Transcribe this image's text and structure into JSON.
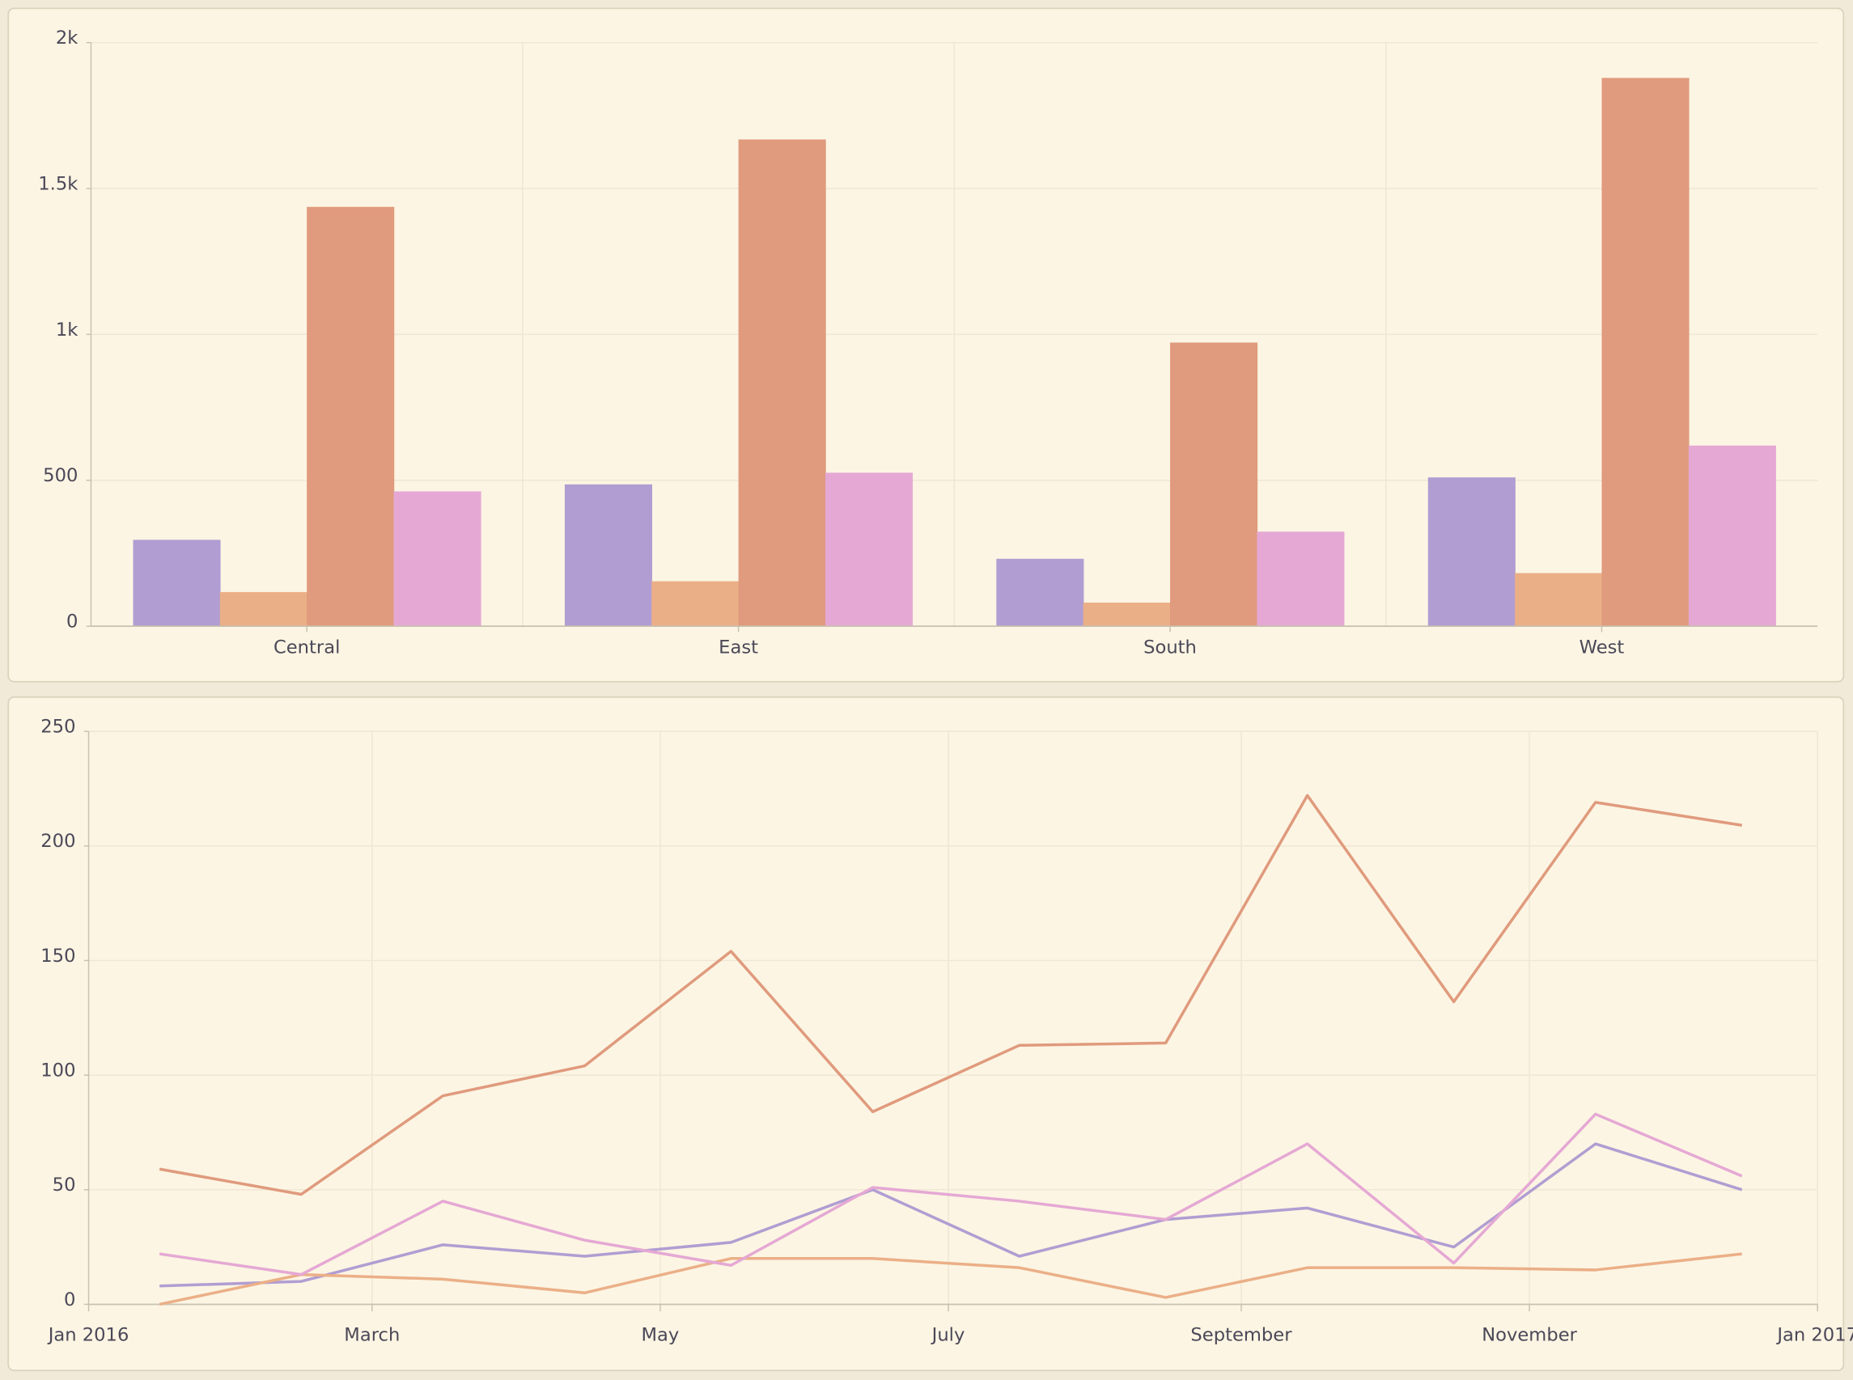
{
  "colors": {
    "background": "#fcf5e3",
    "page": "#f1ead8",
    "border": "#d9d2bc",
    "grid": "#efe6d3",
    "axis": "#c9c1b0",
    "text": "#4b4858",
    "series": [
      "#b19dd2",
      "#ebaf87",
      "#e09a7d",
      "#e5a8d4"
    ]
  },
  "chart_data": [
    {
      "type": "bar",
      "categories": [
        "Central",
        "East",
        "South",
        "West"
      ],
      "series": [
        {
          "values": [
            296,
            486,
            231,
            510
          ]
        },
        {
          "values": [
            117,
            154,
            81,
            182
          ]
        },
        {
          "values": [
            1437,
            1668,
            972,
            1879
          ]
        },
        {
          "values": [
            462,
            526,
            324,
            619
          ]
        }
      ],
      "ylim": [
        0,
        2000
      ],
      "yticks": [
        0,
        500,
        1000,
        1500,
        2000
      ],
      "ytick_labels": [
        "0",
        "500",
        "1k",
        "1.5k",
        "2k"
      ],
      "grid": true
    },
    {
      "type": "line",
      "x": [
        "2016-01-16",
        "2016-02-15",
        "2016-03-16",
        "2016-04-15",
        "2016-05-16",
        "2016-06-15",
        "2016-07-16",
        "2016-08-16",
        "2016-09-15",
        "2016-10-16",
        "2016-11-15",
        "2016-12-16"
      ],
      "series": [
        {
          "values": [
            8,
            10,
            26,
            21,
            27,
            50,
            21,
            37,
            42,
            25,
            70,
            50
          ]
        },
        {
          "values": [
            0,
            13,
            11,
            5,
            20,
            20,
            16,
            3,
            16,
            16,
            15,
            22
          ]
        },
        {
          "values": [
            59,
            48,
            91,
            104,
            154,
            84,
            113,
            114,
            222,
            132,
            219,
            209
          ]
        },
        {
          "values": [
            22,
            13,
            45,
            28,
            17,
            51,
            45,
            37,
            70,
            18,
            83,
            56
          ]
        }
      ],
      "xlim": [
        "2016-01-01",
        "2017-01-01"
      ],
      "xticks": [
        "2016-01-01",
        "2016-03-01",
        "2016-05-01",
        "2016-07-01",
        "2016-09-01",
        "2016-11-01",
        "2017-01-01"
      ],
      "xtick_labels": [
        "Jan 2016",
        "March",
        "May",
        "July",
        "September",
        "November",
        "Jan 2017"
      ],
      "ylim": [
        0,
        250
      ],
      "yticks": [
        0,
        50,
        100,
        150,
        200,
        250
      ],
      "ytick_labels": [
        "0",
        "50",
        "100",
        "150",
        "200",
        "250"
      ],
      "grid": true
    }
  ]
}
